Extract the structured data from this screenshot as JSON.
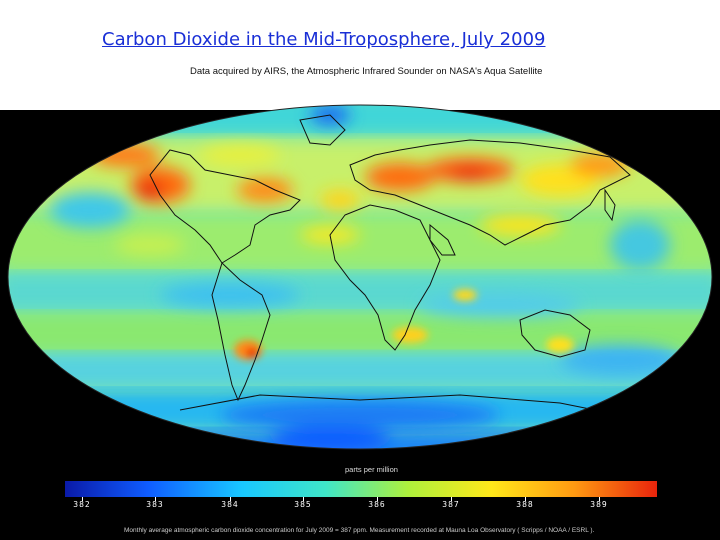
{
  "title": "Carbon Dioxide in the Mid-Troposphere, July 2009",
  "subtitle": "Data acquired by AIRS, the Atmospheric Infrared Sounder on NASA's Aqua Satellite",
  "legend": {
    "unit": "parts per million",
    "ticks": [
      "382",
      "383",
      "384",
      "385",
      "386",
      "387",
      "388",
      "389"
    ],
    "colors": [
      "#0a1aa8",
      "#0f5cff",
      "#19c8ff",
      "#3fe6c8",
      "#aef03c",
      "#ffe81a",
      "#ff9a12",
      "#e8240c"
    ]
  },
  "footnote": "Monthly average atmospheric carbon dioxide concentration for July 2009 = 387 ppm. Measurement recorded at Mauna Loa Observatory ( Scripps / NOAA / ESRL ).",
  "colors": {
    "page_background": "#000000",
    "header_background": "#ffffff",
    "title_link": "#1a2fd6"
  }
}
